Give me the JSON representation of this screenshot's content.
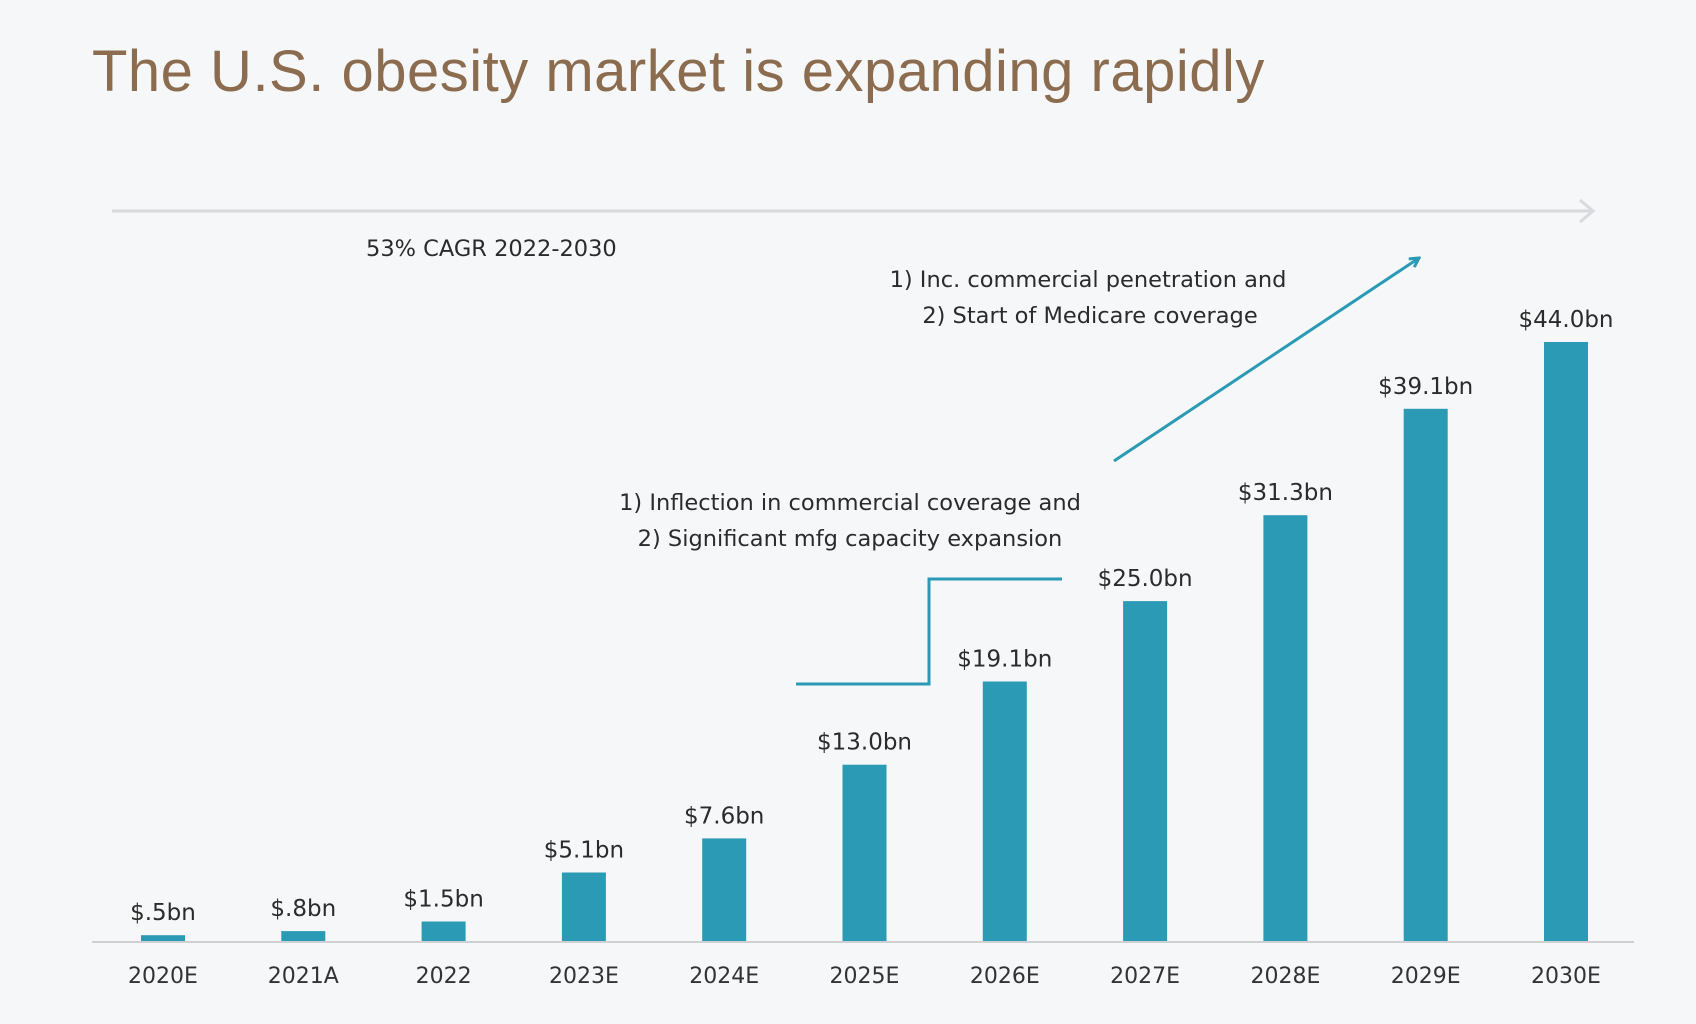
{
  "title": "The U.S. obesity market is expanding rapidly",
  "colors": {
    "bar": "#2b9ab5",
    "title": "#8c6c4f",
    "guide": "#d9dadd",
    "annotation_line": "#2b9ab5"
  },
  "chart_data": {
    "type": "bar",
    "categories": [
      "2020E",
      "2021A",
      "2022",
      "2023E",
      "2024E",
      "2025E",
      "2026E",
      "2027E",
      "2028E",
      "2029E",
      "2030E"
    ],
    "values": [
      0.5,
      0.8,
      1.5,
      5.1,
      7.6,
      13.0,
      19.1,
      25.0,
      31.3,
      39.1,
      44.0
    ],
    "value_labels": [
      "$.5bn",
      "$.8bn",
      "$1.5bn",
      "$5.1bn",
      "$7.6bn",
      "$13.0bn",
      "$19.1bn",
      "$25.0bn",
      "$31.3bn",
      "$39.1bn",
      "$44.0bn"
    ],
    "ylim": [
      0,
      44.0
    ],
    "grid": false,
    "annotations": {
      "cagr": "53% CAGR 2022-2030",
      "phase1": [
        "1) Inflection in commercial coverage and",
        "2) Significant mfg capacity expansion"
      ],
      "phase2": [
        "1) Inc. commercial penetration and",
        "2) Start of Medicare coverage"
      ]
    }
  }
}
